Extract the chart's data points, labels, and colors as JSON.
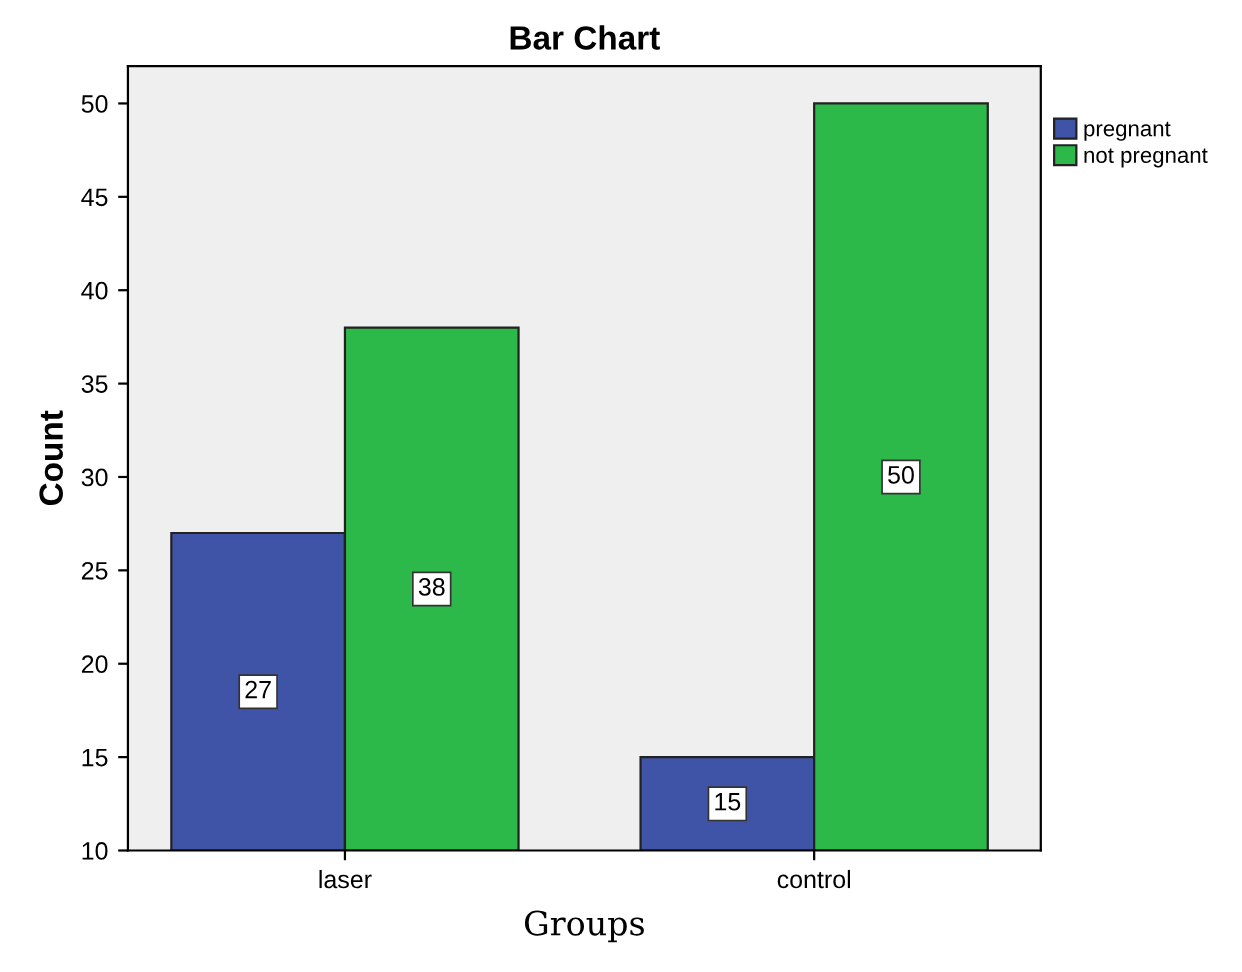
{
  "chart_data": {
    "type": "bar",
    "title": "Bar Chart",
    "xlabel": "Groups",
    "ylabel": "Count",
    "categories": [
      "laser",
      "control"
    ],
    "series": [
      {
        "name": "pregnant",
        "color": "#3f54a6",
        "values": [
          27,
          15
        ]
      },
      {
        "name": "not pregnant",
        "color": "#2db84a",
        "values": [
          38,
          50
        ]
      }
    ],
    "ylim": [
      10,
      52
    ],
    "yticks": [
      10,
      15,
      20,
      25,
      30,
      35,
      40,
      45,
      50
    ],
    "data_labels": true,
    "legend": "top right",
    "grid": false
  }
}
